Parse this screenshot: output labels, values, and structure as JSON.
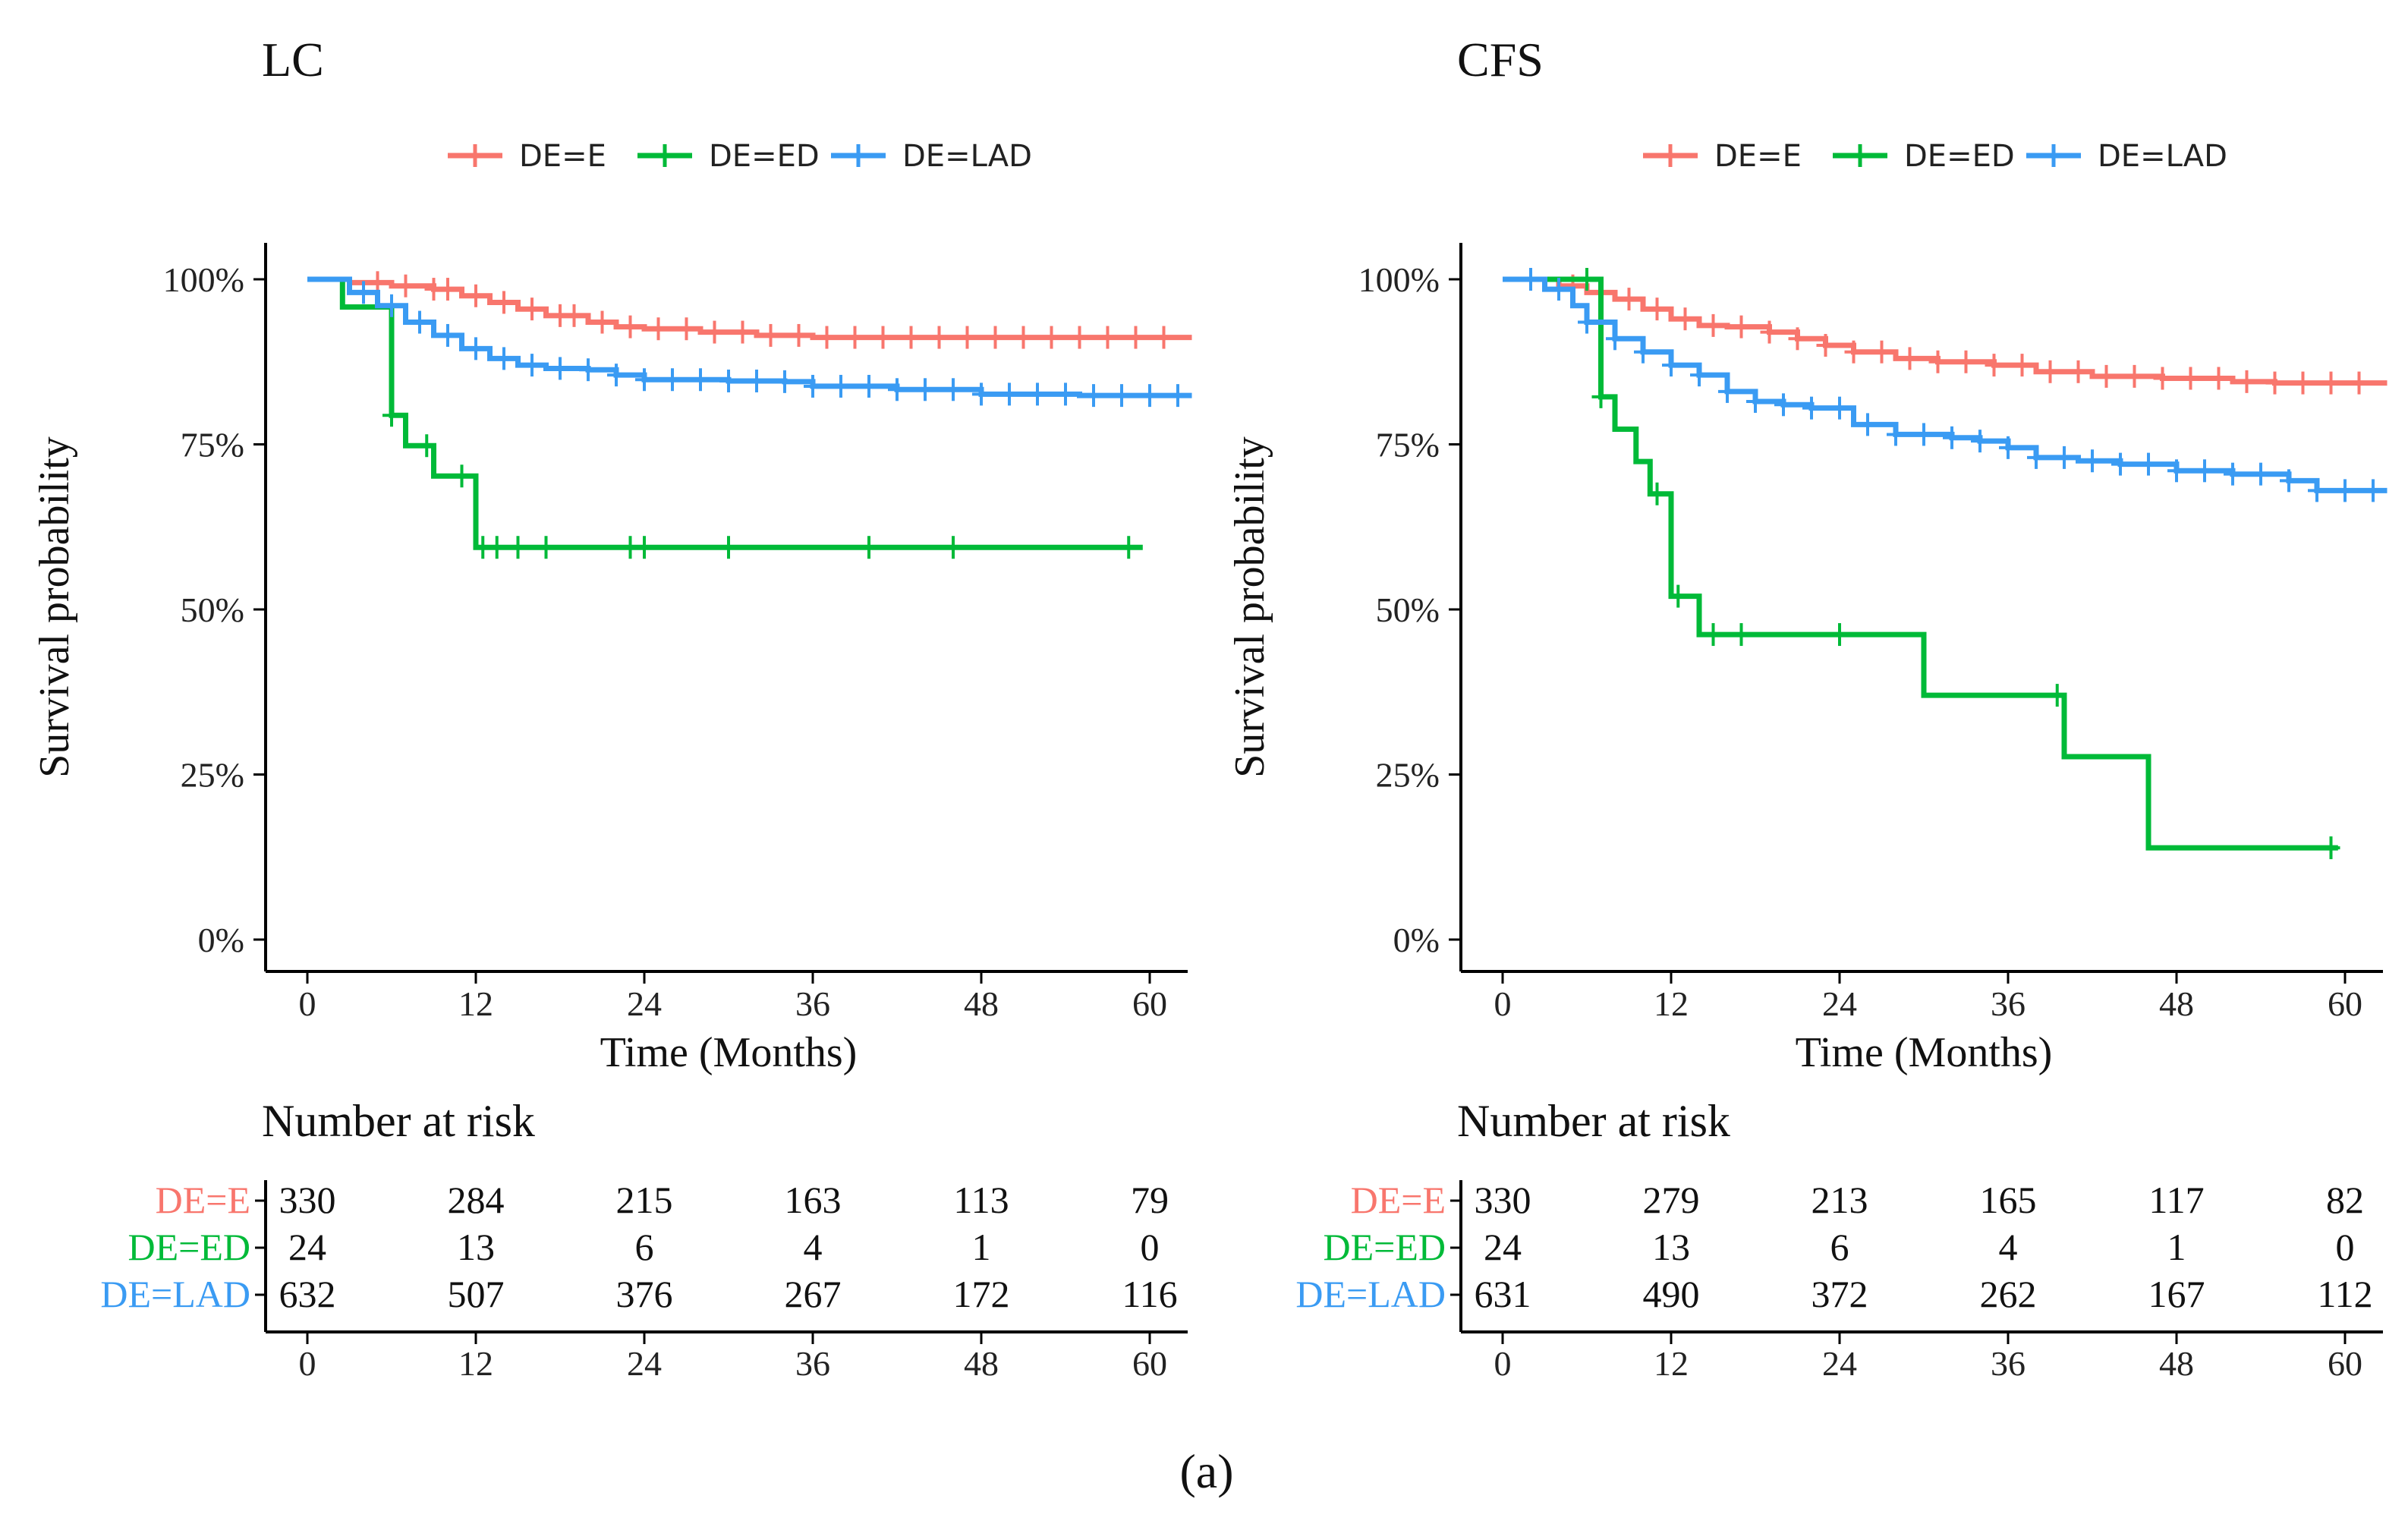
{
  "caption": "(a)",
  "legend_labels": [
    "DE=E",
    "DE=ED",
    "DE=LAD"
  ],
  "colors": {
    "DE=E": "#F8766D",
    "DE=ED": "#00BA38",
    "DE=LAD": "#3A9BF3"
  },
  "chart_data": [
    {
      "type": "line",
      "title": "LC",
      "xlabel": "Time (Months)",
      "ylabel": "Survival probability",
      "xlim": [
        0,
        60
      ],
      "ylim": [
        0,
        100
      ],
      "x_ticks": [
        "0",
        "12",
        "24",
        "36",
        "48",
        "60"
      ],
      "y_ticks": [
        "0%",
        "25%",
        "50%",
        "75%",
        "100%"
      ],
      "legend_position": "top",
      "series": [
        {
          "name": "DE=E",
          "step": true,
          "points": [
            [
              0,
              100
            ],
            [
              3,
              99.5
            ],
            [
              6,
              99
            ],
            [
              9,
              98.5
            ],
            [
              11,
              97.5
            ],
            [
              13,
              96.5
            ],
            [
              15,
              95.5
            ],
            [
              17,
              94.5
            ],
            [
              20,
              93.5
            ],
            [
              22,
              92.8
            ],
            [
              24,
              92.5
            ],
            [
              28,
              92
            ],
            [
              32,
              91.5
            ],
            [
              36,
              91.2
            ],
            [
              45,
              91.2
            ],
            [
              60,
              91.2
            ],
            [
              63,
              91.2
            ]
          ],
          "censor": [
            5,
            7,
            9,
            10,
            12,
            14,
            16,
            18,
            19,
            21,
            23,
            25,
            27,
            29,
            31,
            33,
            35,
            37,
            39,
            41,
            43,
            45,
            47,
            49,
            51,
            53,
            55,
            57,
            59,
            61
          ]
        },
        {
          "name": "DE=ED",
          "step": true,
          "points": [
            [
              0,
              100
            ],
            [
              2.5,
              100
            ],
            [
              2.5,
              95.8
            ],
            [
              6,
              95.8
            ],
            [
              6,
              79.4
            ],
            [
              7,
              79.4
            ],
            [
              7,
              74.8
            ],
            [
              9,
              74.8
            ],
            [
              9,
              70.2
            ],
            [
              12,
              70.2
            ],
            [
              12,
              59.4
            ],
            [
              59.5,
              59.4
            ]
          ],
          "censor": [
            6,
            8.5,
            11,
            12.5,
            13.5,
            15,
            17,
            23,
            24,
            30,
            40,
            46,
            58.5
          ]
        },
        {
          "name": "DE=LAD",
          "step": true,
          "points": [
            [
              0,
              100
            ],
            [
              3,
              98
            ],
            [
              5,
              96
            ],
            [
              7,
              93.5
            ],
            [
              9,
              91.5
            ],
            [
              11,
              89.5
            ],
            [
              13,
              88
            ],
            [
              15,
              87
            ],
            [
              17,
              86.5
            ],
            [
              20,
              86.3
            ],
            [
              22,
              85.5
            ],
            [
              24,
              84.8
            ],
            [
              30,
              84.6
            ],
            [
              34,
              84.5
            ],
            [
              36,
              83.8
            ],
            [
              42,
              83.3
            ],
            [
              48,
              82.6
            ],
            [
              55,
              82.4
            ],
            [
              63,
              82.4
            ]
          ],
          "censor": [
            4,
            6,
            8,
            10,
            12,
            14,
            16,
            18,
            20,
            22,
            24,
            26,
            28,
            30,
            32,
            34,
            36,
            38,
            40,
            42,
            44,
            46,
            48,
            50,
            52,
            54,
            56,
            58,
            60,
            62
          ]
        }
      ],
      "risk_table": {
        "title": "Number at risk",
        "rows": [
          {
            "label": "DE=E",
            "values": [
              "330",
              "284",
              "215",
              "163",
              "113",
              "79"
            ]
          },
          {
            "label": "DE=ED",
            "values": [
              "24",
              "13",
              "6",
              "4",
              "1",
              "0"
            ]
          },
          {
            "label": "DE=LAD",
            "values": [
              "632",
              "507",
              "376",
              "267",
              "172",
              "116"
            ]
          }
        ]
      }
    },
    {
      "type": "line",
      "title": "CFS",
      "xlabel": "Time (Months)",
      "ylabel": "Survival probability",
      "xlim": [
        0,
        60
      ],
      "ylim": [
        0,
        100
      ],
      "x_ticks": [
        "0",
        "12",
        "24",
        "36",
        "48",
        "60"
      ],
      "y_ticks": [
        "0%",
        "25%",
        "50%",
        "75%",
        "100%"
      ],
      "legend_position": "top",
      "series": [
        {
          "name": "DE=E",
          "step": true,
          "points": [
            [
              0,
              100
            ],
            [
              4,
              99
            ],
            [
              6,
              98
            ],
            [
              8,
              97
            ],
            [
              10,
              95.5
            ],
            [
              12,
              94
            ],
            [
              14,
              93
            ],
            [
              16,
              92.8
            ],
            [
              19,
              92
            ],
            [
              21,
              91
            ],
            [
              23,
              90
            ],
            [
              25,
              89
            ],
            [
              28,
              88
            ],
            [
              31,
              87.5
            ],
            [
              35,
              87
            ],
            [
              38,
              86
            ],
            [
              42,
              85.3
            ],
            [
              47,
              85
            ],
            [
              52,
              84.5
            ],
            [
              55,
              84.3
            ],
            [
              63,
              84.3
            ]
          ],
          "censor": [
            5,
            7,
            9,
            11,
            13,
            15,
            17,
            19,
            21,
            23,
            25,
            27,
            29,
            31,
            33,
            35,
            37,
            39,
            41,
            43,
            45,
            47,
            49,
            51,
            53,
            55,
            57,
            59,
            61
          ]
        },
        {
          "name": "DE=ED",
          "step": true,
          "points": [
            [
              0,
              100
            ],
            [
              7,
              100
            ],
            [
              7,
              82.2
            ],
            [
              8,
              82.2
            ],
            [
              8,
              77.3
            ],
            [
              9.5,
              77.3
            ],
            [
              9.5,
              72.4
            ],
            [
              10.5,
              72.4
            ],
            [
              10.5,
              67.5
            ],
            [
              12,
              67.5
            ],
            [
              12,
              52
            ],
            [
              14,
              52
            ],
            [
              14,
              46.2
            ],
            [
              30,
              46.2
            ],
            [
              30,
              37
            ],
            [
              40,
              37
            ],
            [
              40,
              27.7
            ],
            [
              46,
              27.7
            ],
            [
              46,
              13.9
            ],
            [
              59.5,
              13.9
            ]
          ],
          "censor": [
            6,
            7,
            11,
            12.5,
            15,
            17,
            24,
            39.5,
            59
          ]
        },
        {
          "name": "DE=LAD",
          "step": true,
          "points": [
            [
              0,
              100
            ],
            [
              3,
              98.5
            ],
            [
              5,
              96
            ],
            [
              6,
              93.5
            ],
            [
              8,
              91
            ],
            [
              10,
              89
            ],
            [
              12,
              87
            ],
            [
              14,
              85.5
            ],
            [
              16,
              83
            ],
            [
              18,
              81.5
            ],
            [
              20,
              81
            ],
            [
              22,
              80.5
            ],
            [
              25,
              78
            ],
            [
              28,
              76.5
            ],
            [
              32,
              76
            ],
            [
              34,
              75.5
            ],
            [
              36,
              74.5
            ],
            [
              38,
              73
            ],
            [
              41,
              72.5
            ],
            [
              44,
              72
            ],
            [
              48,
              71
            ],
            [
              52,
              70.5
            ],
            [
              56,
              69.5
            ],
            [
              58,
              68
            ],
            [
              63,
              68
            ]
          ],
          "censor": [
            2,
            4,
            6,
            8,
            10,
            12,
            14,
            16,
            18,
            20,
            22,
            24,
            26,
            28,
            30,
            32,
            34,
            36,
            38,
            40,
            42,
            44,
            46,
            48,
            50,
            52,
            54,
            56,
            58,
            60,
            62
          ]
        }
      ],
      "risk_table": {
        "title": "Number at risk",
        "rows": [
          {
            "label": "DE=E",
            "values": [
              "330",
              "279",
              "213",
              "165",
              "117",
              "82"
            ]
          },
          {
            "label": "DE=ED",
            "values": [
              "24",
              "13",
              "6",
              "4",
              "1",
              "0"
            ]
          },
          {
            "label": "DE=LAD",
            "values": [
              "631",
              "490",
              "372",
              "262",
              "167",
              "112"
            ]
          }
        ]
      }
    }
  ]
}
